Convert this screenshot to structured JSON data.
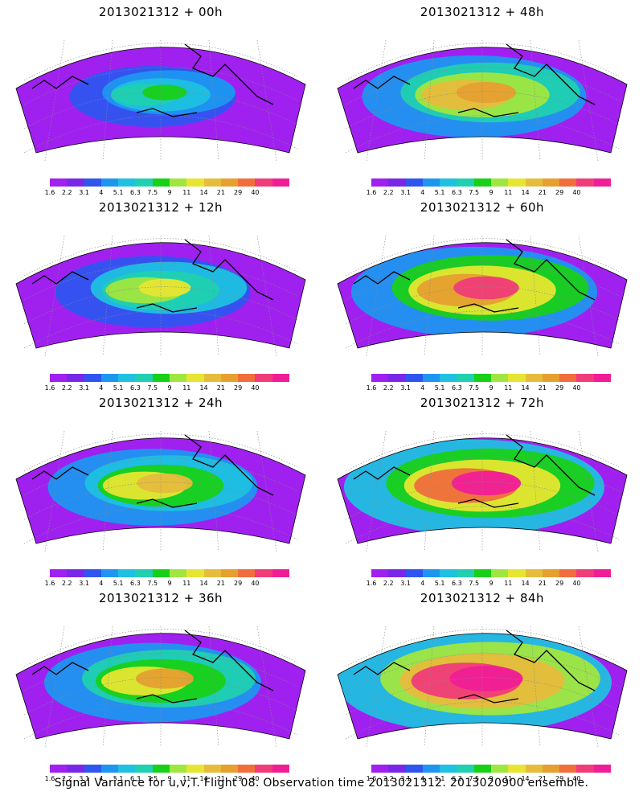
{
  "caption": "Signal Variance for u,v,T. Flight 08. Observation time 2013021312. 2013020900 ensemble.",
  "colorbar": {
    "labels": [
      "1.6",
      "2.2",
      "3.1",
      "4",
      "5.1",
      "6.3",
      "7.5",
      "9",
      "11",
      "14",
      "21",
      "29",
      "40"
    ],
    "colors": [
      "#a020f0",
      "#7a28e8",
      "#2f55f0",
      "#1e96f0",
      "#1fc0e0",
      "#20d0b0",
      "#18d018",
      "#a0e640",
      "#e6e632",
      "#e6bc3c",
      "#e6a030",
      "#f06e3c",
      "#f03c78",
      "#f01e96"
    ]
  },
  "panels": [
    {
      "title": "2013021312 + 00h"
    },
    {
      "title": "2013021312 + 48h"
    },
    {
      "title": "2013021312 + 12h"
    },
    {
      "title": "2013021312 + 60h"
    },
    {
      "title": "2013021312 + 24h"
    },
    {
      "title": "2013021312 + 72h"
    },
    {
      "title": "2013021312 + 36h"
    },
    {
      "title": "2013021312 + 84h"
    }
  ]
}
